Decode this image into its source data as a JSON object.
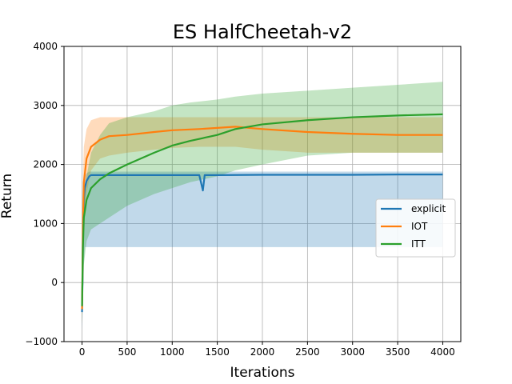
{
  "chart_data": {
    "type": "line",
    "title": "ES HalfCheetah-v2",
    "xlabel": "Iterations",
    "ylabel": "Return",
    "xlim": [
      -200,
      4200
    ],
    "ylim": [
      -1000,
      4000
    ],
    "xticks": [
      0,
      500,
      1000,
      1500,
      2000,
      2500,
      3000,
      3500,
      4000
    ],
    "yticks": [
      -1000,
      0,
      1000,
      2000,
      3000,
      4000
    ],
    "xtick_labels": [
      "0",
      "500",
      "1000",
      "1500",
      "2000",
      "2500",
      "3000",
      "3500",
      "4000"
    ],
    "ytick_labels": [
      "−1000",
      "0",
      "1000",
      "2000",
      "3000",
      "4000"
    ],
    "grid": true,
    "legend_position": "center-right",
    "series": [
      {
        "name": "explicit",
        "color": "#1f77b4",
        "x": [
          0,
          5,
          10,
          20,
          30,
          50,
          80,
          100,
          200,
          500,
          1000,
          1300,
          1340,
          1360,
          1500,
          2000,
          2500,
          3000,
          3500,
          4000
        ],
        "y": [
          -500,
          0,
          800,
          1400,
          1600,
          1720,
          1800,
          1820,
          1820,
          1820,
          1820,
          1820,
          1560,
          1820,
          1820,
          1825,
          1825,
          1825,
          1830,
          1830
        ],
        "band_upper": [
          -300,
          500,
          1300,
          1700,
          1800,
          1850,
          1880,
          1880,
          1880,
          1880,
          1880,
          1880,
          1880,
          1880,
          1880,
          1880,
          1880,
          1880,
          1880,
          1880
        ],
        "band_lower": [
          -800,
          -600,
          -300,
          300,
          600,
          600,
          600,
          600,
          600,
          600,
          600,
          600,
          600,
          600,
          600,
          600,
          600,
          600,
          600,
          600
        ]
      },
      {
        "name": "IOT",
        "color": "#ff7f0e",
        "x": [
          0,
          5,
          10,
          20,
          50,
          100,
          200,
          300,
          500,
          800,
          1000,
          1300,
          1500,
          1700,
          2000,
          2500,
          3000,
          3500,
          4000
        ],
        "y": [
          -450,
          200,
          1000,
          1700,
          2100,
          2300,
          2420,
          2480,
          2500,
          2550,
          2580,
          2600,
          2620,
          2640,
          2600,
          2550,
          2520,
          2500,
          2500
        ],
        "band_upper": [
          -200,
          800,
          1800,
          2300,
          2600,
          2750,
          2800,
          2800,
          2800,
          2800,
          2800,
          2800,
          2800,
          2800,
          2800,
          2800,
          2800,
          2800,
          2800
        ],
        "band_lower": [
          -700,
          -500,
          100,
          900,
          1500,
          1900,
          2100,
          2150,
          2200,
          2250,
          2280,
          2300,
          2300,
          2300,
          2250,
          2200,
          2200,
          2200,
          2200
        ]
      },
      {
        "name": "ITT",
        "color": "#2ca02c",
        "x": [
          0,
          5,
          10,
          20,
          50,
          100,
          200,
          300,
          500,
          800,
          1000,
          1200,
          1500,
          1700,
          2000,
          2500,
          3000,
          3500,
          4000
        ],
        "y": [
          -400,
          100,
          600,
          1100,
          1400,
          1600,
          1750,
          1850,
          2000,
          2200,
          2320,
          2400,
          2500,
          2600,
          2680,
          2750,
          2800,
          2830,
          2850
        ],
        "band_upper": [
          -100,
          500,
          1100,
          1500,
          1800,
          2200,
          2500,
          2700,
          2800,
          2900,
          3000,
          3050,
          3100,
          3150,
          3200,
          3250,
          3300,
          3350,
          3400
        ],
        "band_lower": [
          -700,
          -400,
          -200,
          300,
          700,
          900,
          1000,
          1100,
          1300,
          1500,
          1600,
          1700,
          1800,
          1900,
          2000,
          2150,
          2200,
          2200,
          2200
        ]
      }
    ]
  }
}
